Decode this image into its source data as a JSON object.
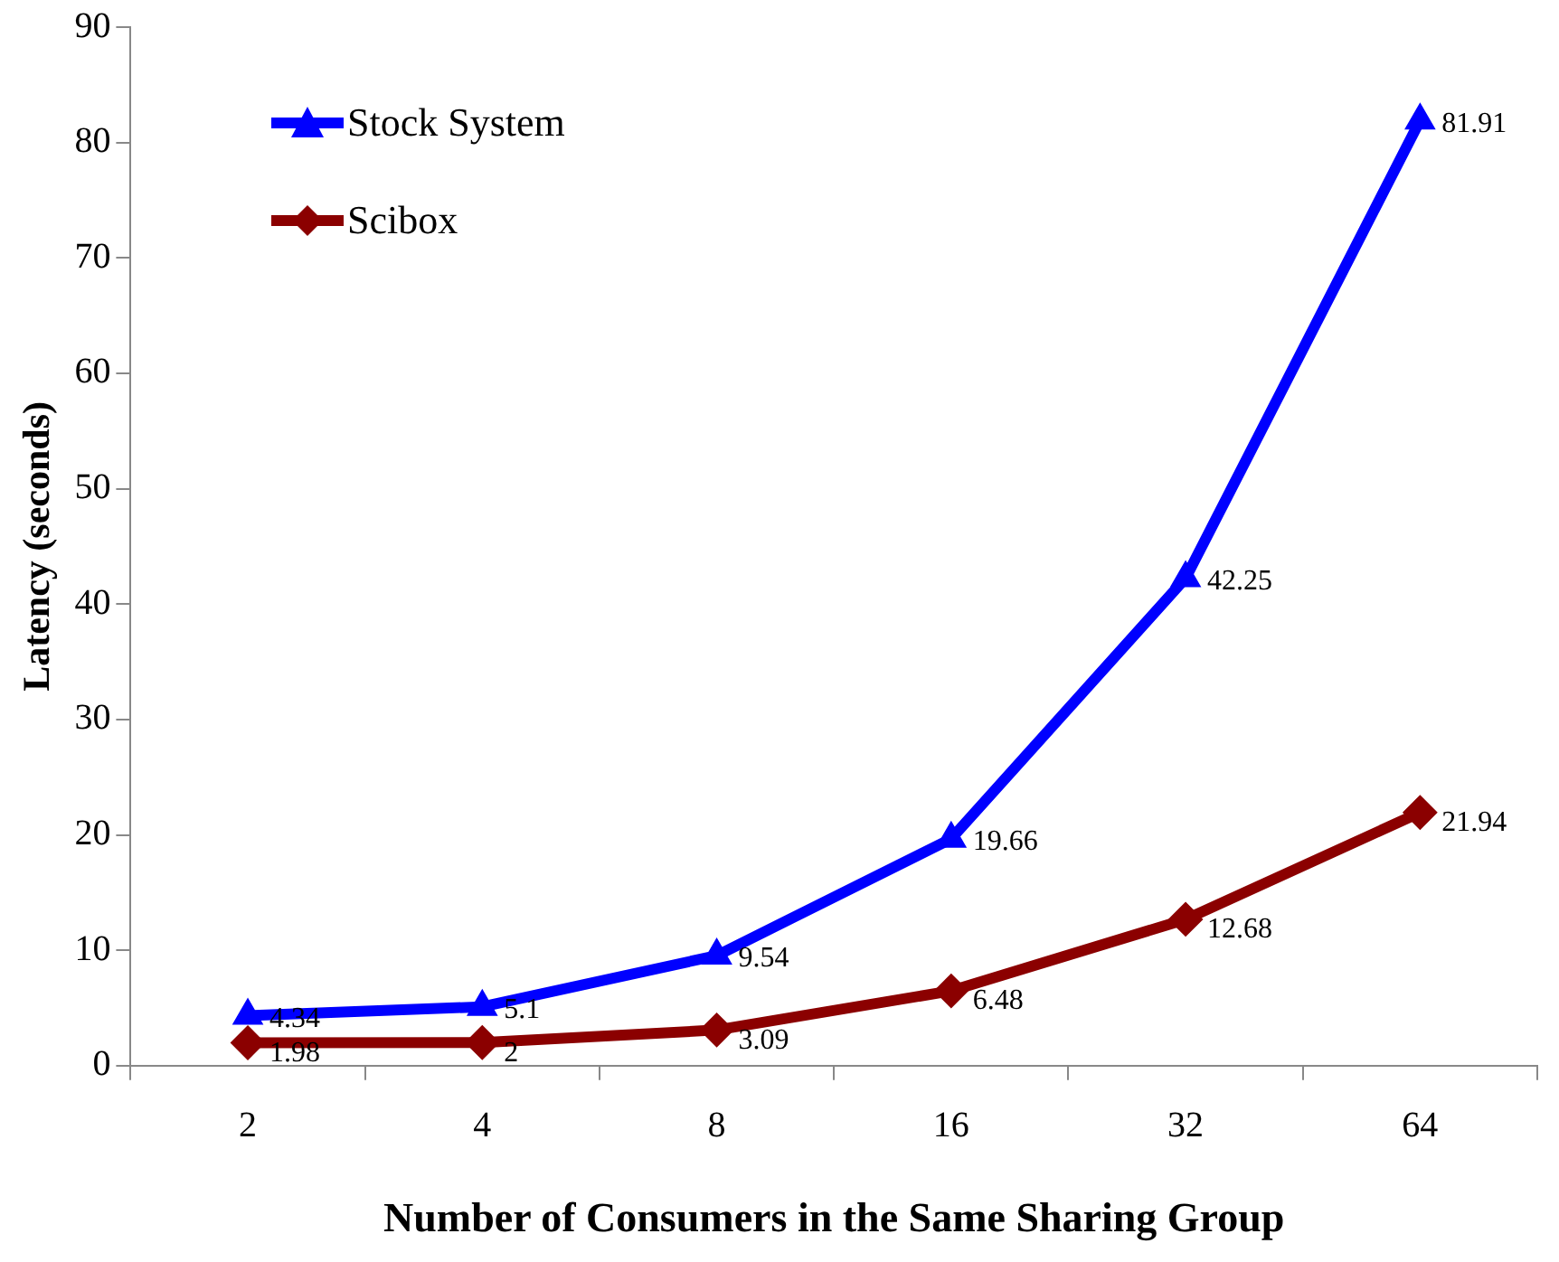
{
  "chart_data": {
    "type": "line",
    "xlabel": "Number of Consumers in the Same Sharing Group",
    "ylabel": "Latency (seconds)",
    "categories": [
      "2",
      "4",
      "8",
      "16",
      "32",
      "64"
    ],
    "series": [
      {
        "name": "Stock System",
        "color": "#0000ff",
        "marker": "triangle",
        "values": [
          4.34,
          5.1,
          9.54,
          19.66,
          42.25,
          81.91
        ]
      },
      {
        "name": "Scibox",
        "color": "#8b0000",
        "marker": "diamond",
        "values": [
          1.98,
          2,
          3.09,
          6.48,
          12.68,
          21.94
        ]
      }
    ],
    "ylim": [
      0,
      90
    ],
    "yticks": [
      0,
      10,
      20,
      30,
      40,
      50,
      60,
      70,
      80,
      90
    ],
    "grid": false,
    "legend": "top left",
    "data_labels": true,
    "line_style": "solid"
  }
}
